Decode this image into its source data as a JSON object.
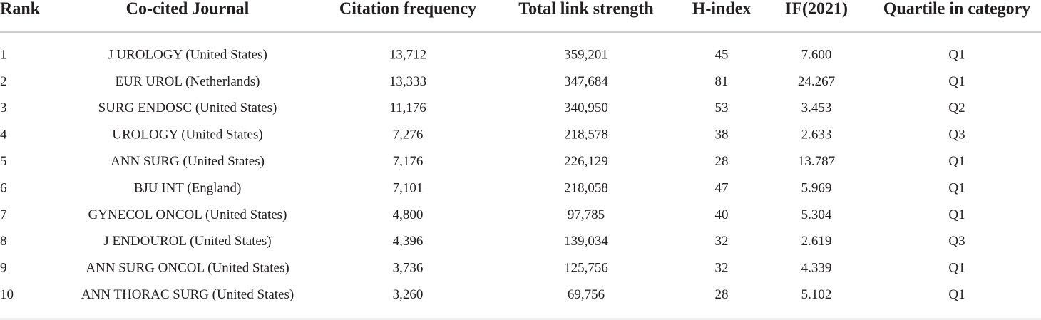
{
  "table": {
    "header": [
      "Rank",
      "Co-cited Journal",
      "Citation frequency",
      "Total link strength",
      "H-index",
      "IF(2021)",
      "Quartile in category"
    ],
    "rows": [
      [
        "1",
        "J UROLOGY (United States)",
        "13,712",
        "359,201",
        "45",
        "7.600",
        "Q1"
      ],
      [
        "2",
        "EUR UROL (Netherlands)",
        "13,333",
        "347,684",
        "81",
        "24.267",
        "Q1"
      ],
      [
        "3",
        "SURG ENDOSC (United States)",
        "11,176",
        "340,950",
        "53",
        "3.453",
        "Q2"
      ],
      [
        "4",
        "UROLOGY (United States)",
        "7,276",
        "218,578",
        "38",
        "2.633",
        "Q3"
      ],
      [
        "5",
        "ANN SURG (United States)",
        "7,176",
        "226,129",
        "28",
        "13.787",
        "Q1"
      ],
      [
        "6",
        "BJU INT (England)",
        "7,101",
        "218,058",
        "47",
        "5.969",
        "Q1"
      ],
      [
        "7",
        "GYNECOL ONCOL (United States)",
        "4,800",
        "97,785",
        "40",
        "5.304",
        "Q1"
      ],
      [
        "8",
        "J ENDOUROL (United States)",
        "4,396",
        "139,034",
        "32",
        "2.619",
        "Q3"
      ],
      [
        "9",
        "ANN SURG ONCOL (United States)",
        "3,736",
        "125,756",
        "32",
        "4.339",
        "Q1"
      ],
      [
        "10",
        "ANN THORAC SURG (United States)",
        "3,260",
        "69,756",
        "28",
        "5.102",
        "Q1"
      ]
    ]
  }
}
